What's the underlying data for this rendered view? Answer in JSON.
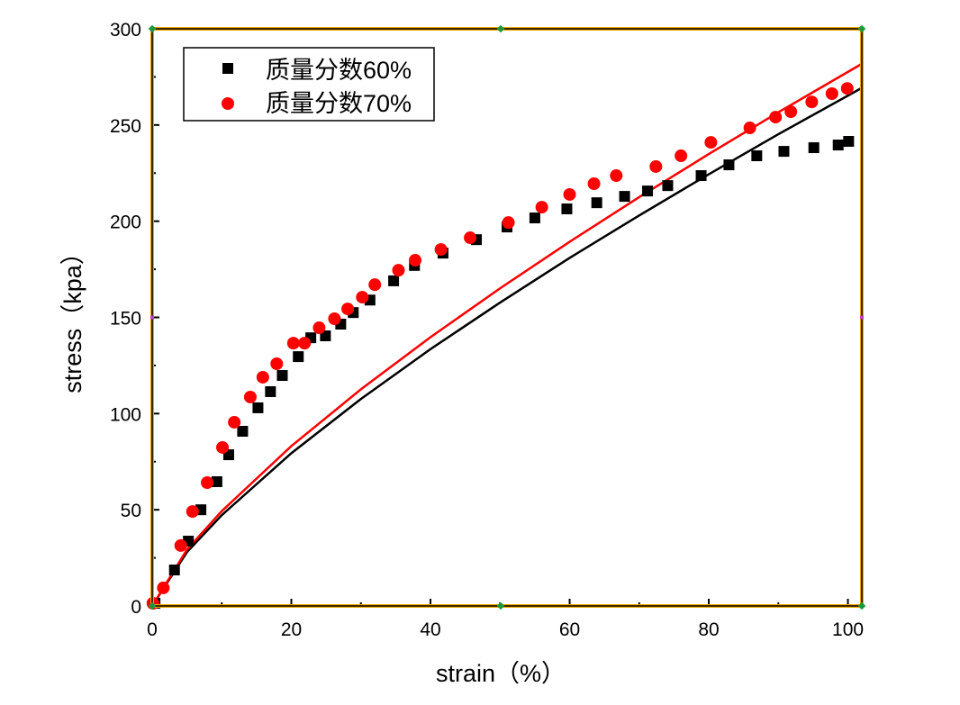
{
  "chart_data": {
    "type": "scatter",
    "title": "",
    "xlabel": "strain（%）",
    "ylabel": "stress（kpa）",
    "xlim": [
      0,
      102
    ],
    "ylim": [
      0,
      300
    ],
    "xticks": [
      "0",
      "20",
      "40",
      "60",
      "80",
      "100"
    ],
    "yticks": [
      "0",
      "50",
      "100",
      "150",
      "200",
      "250",
      "300"
    ],
    "grid": false,
    "legend_position": "top-left",
    "series": [
      {
        "name": "质量分数60%",
        "marker": "square",
        "color": "#000000",
        "x": [
          0.4,
          3.2,
          5.2,
          7.0,
          9.3,
          11,
          13,
          15.2,
          17,
          18.7,
          21,
          22.8,
          24.9,
          27.1,
          28.9,
          31.3,
          34.7,
          37.7,
          41.8,
          46.6,
          51,
          55,
          59.6,
          63.9,
          67.9,
          71.2,
          74.1,
          78.9,
          82.9,
          86.9,
          90.8,
          95.1,
          98.6,
          100.1
        ],
        "y": [
          1.4,
          18.7,
          33.7,
          50,
          64.6,
          78.6,
          90.8,
          103,
          111.4,
          119.8,
          129.6,
          139.4,
          140.4,
          146.5,
          152.5,
          159,
          169,
          177,
          183.4,
          190.4,
          197,
          201.7,
          206.4,
          209.6,
          212.9,
          215.7,
          218.5,
          223.7,
          229.3,
          234,
          236.3,
          238.2,
          239.6,
          241.5
        ]
      },
      {
        "name": "质量分数70%",
        "marker": "circle",
        "color": "#ff0000",
        "x": [
          0.1,
          1.6,
          4.1,
          5.8,
          7.9,
          10.1,
          11.8,
          14.1,
          15.9,
          17.9,
          20.3,
          21.9,
          24,
          26.2,
          28.1,
          30.2,
          32,
          35.4,
          37.8,
          41.5,
          45.7,
          51.2,
          56,
          60,
          63.5,
          66.7,
          72.4,
          76,
          80.3,
          85.9,
          89.6,
          91.8,
          94.8,
          97.7,
          99.9
        ],
        "y": [
          1.4,
          9.4,
          31.4,
          49.1,
          64.1,
          82.4,
          95.5,
          108.6,
          118.9,
          125.9,
          136.6,
          136.6,
          144.6,
          149.3,
          154.4,
          160.5,
          167,
          174.5,
          179.7,
          185.3,
          191.4,
          199.3,
          207.3,
          213.9,
          219.5,
          223.7,
          228.4,
          234,
          241,
          248.5,
          254.1,
          256.9,
          262,
          266.3,
          269
        ]
      }
    ],
    "fit_lines": [
      {
        "color": "#000000",
        "x": [
          0,
          5,
          10,
          20,
          30,
          40,
          50,
          60,
          70,
          80,
          90,
          102
        ],
        "y": [
          0,
          28.0,
          47.2,
          79.4,
          107.6,
          133.5,
          157.7,
          180.9,
          203.0,
          224.4,
          245.2,
          269.3
        ]
      },
      {
        "color": "#ff0000",
        "x": [
          0,
          5,
          10,
          20,
          30,
          40,
          50,
          60,
          70,
          80,
          90,
          102
        ],
        "y": [
          0,
          29.3,
          49.3,
          83.1,
          112.6,
          139.7,
          165.1,
          189.3,
          212.5,
          234.9,
          256.6,
          281.8
        ]
      }
    ]
  }
}
